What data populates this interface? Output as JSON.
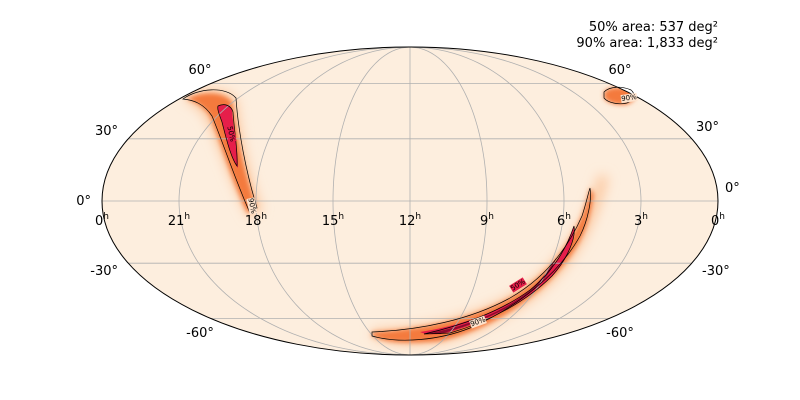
{
  "annotation": {
    "area50": "50% area: 537 deg²",
    "area90": "90% area: 1,833 deg²"
  },
  "lat_labels": {
    "north60": "60°",
    "north30": "30°",
    "equator": "0°",
    "south30": "-30°",
    "south60": "-60°"
  },
  "ra_labels": [
    "0",
    "21",
    "18",
    "15",
    "12",
    "9",
    "6",
    "3",
    "0"
  ],
  "ra_unit": "h",
  "contour_labels": {
    "c50": "50%",
    "c90": "90%"
  },
  "colors": {
    "background": "#fdeede",
    "grid": "#b0b0b0",
    "low": "#fcc49a",
    "mid": "#f47a3c",
    "high": "#e61e4a",
    "peak": "#8c0b2e",
    "contour": "#000000"
  },
  "map_data": {
    "projection": "mollweide",
    "grid": true,
    "ra_grid_hours": [
      21,
      18,
      15,
      12,
      9,
      6,
      3
    ],
    "dec_grid_deg": [
      -60,
      -30,
      0,
      30,
      60
    ]
  }
}
